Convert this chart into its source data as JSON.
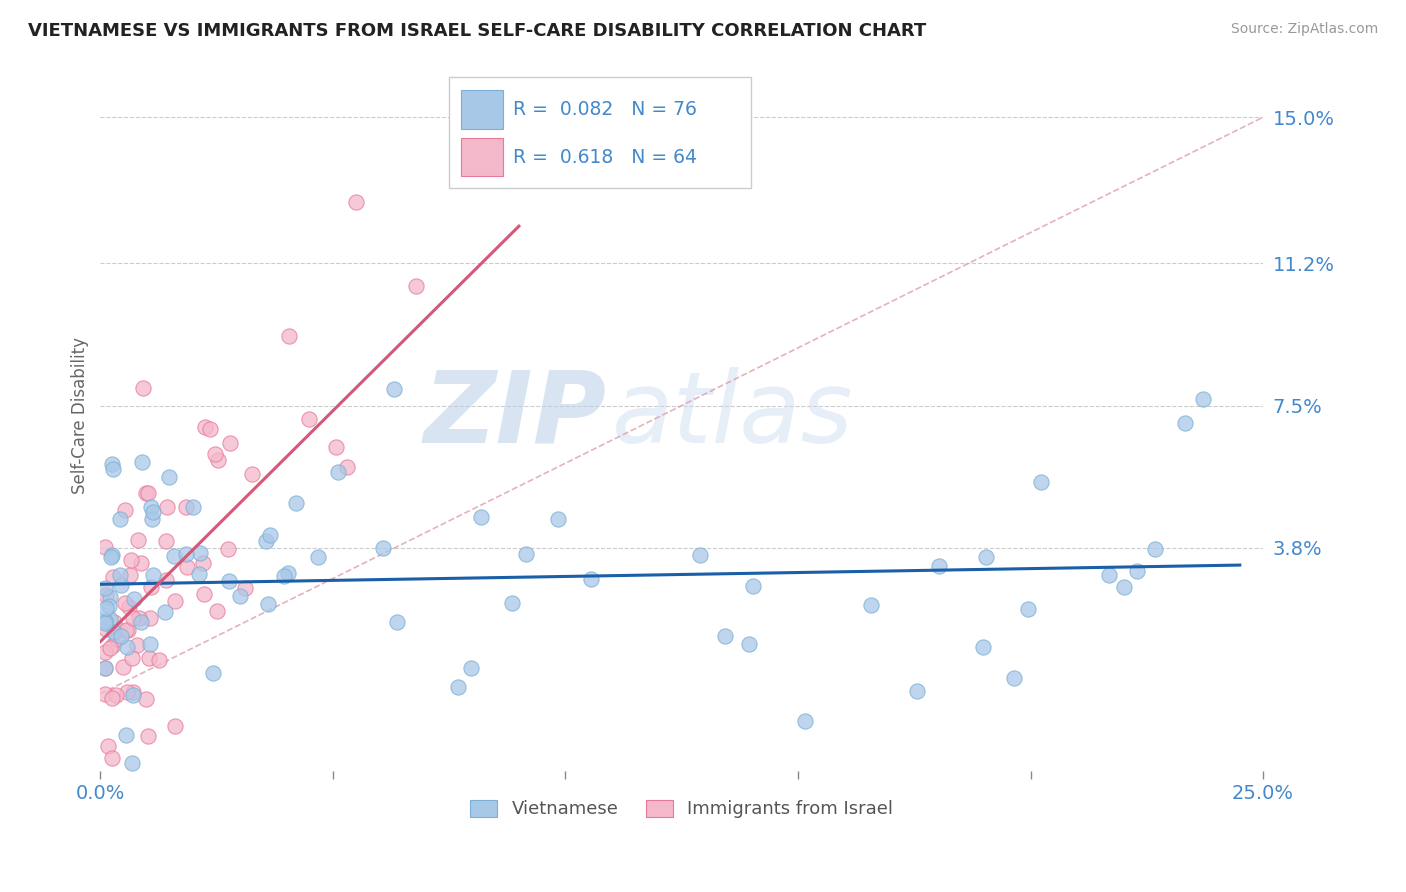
{
  "title": "VIETNAMESE VS IMMIGRANTS FROM ISRAEL SELF-CARE DISABILITY CORRELATION CHART",
  "source": "Source: ZipAtlas.com",
  "ylabel": "Self-Care Disability",
  "xlim": [
    0.0,
    0.25
  ],
  "ylim": [
    -0.02,
    0.165
  ],
  "ytick_positions": [
    0.038,
    0.075,
    0.112,
    0.15
  ],
  "ytick_labels": [
    "3.8%",
    "7.5%",
    "11.2%",
    "15.0%"
  ],
  "legend_labels": [
    "Vietnamese",
    "Immigrants from Israel"
  ],
  "blue_color": "#a8c8e8",
  "blue_edge_color": "#7bafd4",
  "pink_color": "#f4b8cb",
  "pink_edge_color": "#e87898",
  "blue_line_color": "#1a5fa8",
  "pink_line_color": "#d45878",
  "trend_line_color": "#dda0aa",
  "background_color": "#ffffff",
  "watermark_zip": "ZIP",
  "watermark_atlas": "atlas",
  "grid_color": "#cccccc",
  "title_color": "#222222",
  "axis_label_color": "#4488cc",
  "source_color": "#999999",
  "legend_text_color": "#4488cc"
}
